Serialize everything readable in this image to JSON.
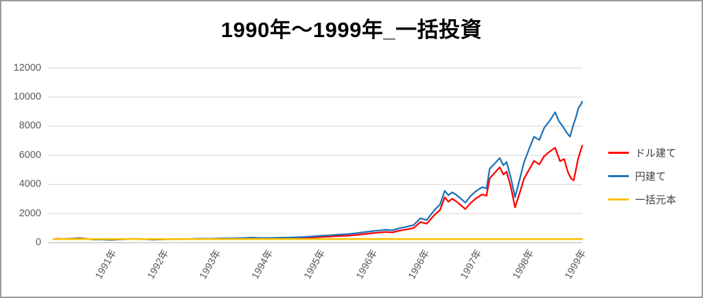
{
  "chart_data": {
    "type": "line",
    "title": "1990年～1999年_一括投資",
    "x_ticks": [
      "1991年",
      "1992年",
      "1993年",
      "1994年",
      "1995年",
      "1996年",
      "1996年",
      "1997年",
      "1998年",
      "1999年"
    ],
    "y_ticks": [
      0,
      2000,
      4000,
      6000,
      8000,
      10000,
      12000
    ],
    "ylim": [
      0,
      12000
    ],
    "grid": "horizontal",
    "legend_position": "right",
    "series": [
      {
        "key": "usd",
        "name": "ドル建て",
        "color": "#FF0000",
        "points": [
          [
            0,
            255
          ],
          [
            0.008,
            270
          ],
          [
            0.018,
            258
          ],
          [
            0.031,
            280
          ],
          [
            0.043,
            300
          ],
          [
            0.05,
            315
          ],
          [
            0.059,
            280
          ],
          [
            0.069,
            252
          ],
          [
            0.079,
            228
          ],
          [
            0.089,
            242
          ],
          [
            0.1,
            218
          ],
          [
            0.111,
            208
          ],
          [
            0.122,
            232
          ],
          [
            0.137,
            252
          ],
          [
            0.153,
            265
          ],
          [
            0.165,
            250
          ],
          [
            0.177,
            244
          ],
          [
            0.189,
            218
          ],
          [
            0.203,
            236
          ],
          [
            0.219,
            252
          ],
          [
            0.236,
            246
          ],
          [
            0.256,
            256
          ],
          [
            0.276,
            270
          ],
          [
            0.297,
            264
          ],
          [
            0.317,
            276
          ],
          [
            0.338,
            282
          ],
          [
            0.358,
            292
          ],
          [
            0.374,
            312
          ],
          [
            0.39,
            292
          ],
          [
            0.409,
            286
          ],
          [
            0.429,
            296
          ],
          [
            0.449,
            302
          ],
          [
            0.473,
            330
          ],
          [
            0.49,
            362
          ],
          [
            0.508,
            400
          ],
          [
            0.524,
            425
          ],
          [
            0.539,
            460
          ],
          [
            0.555,
            480
          ],
          [
            0.571,
            525
          ],
          [
            0.59,
            605
          ],
          [
            0.61,
            685
          ],
          [
            0.629,
            735
          ],
          [
            0.642,
            705
          ],
          [
            0.651,
            805
          ],
          [
            0.67,
            925
          ],
          [
            0.681,
            1010
          ],
          [
            0.694,
            1420
          ],
          [
            0.706,
            1310
          ],
          [
            0.721,
            1930
          ],
          [
            0.731,
            2240
          ],
          [
            0.74,
            3120
          ],
          [
            0.747,
            2820
          ],
          [
            0.754,
            3020
          ],
          [
            0.761,
            2860
          ],
          [
            0.769,
            2620
          ],
          [
            0.779,
            2310
          ],
          [
            0.789,
            2720
          ],
          [
            0.799,
            3040
          ],
          [
            0.811,
            3320
          ],
          [
            0.819,
            3220
          ],
          [
            0.825,
            4420
          ],
          [
            0.834,
            4780
          ],
          [
            0.844,
            5180
          ],
          [
            0.851,
            4680
          ],
          [
            0.857,
            4880
          ],
          [
            0.865,
            3850
          ],
          [
            0.873,
            2430
          ],
          [
            0.881,
            3320
          ],
          [
            0.89,
            4400
          ],
          [
            0.9,
            5050
          ],
          [
            0.909,
            5620
          ],
          [
            0.919,
            5380
          ],
          [
            0.928,
            5940
          ],
          [
            0.94,
            6300
          ],
          [
            0.949,
            6520
          ],
          [
            0.958,
            5600
          ],
          [
            0.966,
            5750
          ],
          [
            0.973,
            4850
          ],
          [
            0.979,
            4420
          ],
          [
            0.984,
            4280
          ],
          [
            0.988,
            5000
          ],
          [
            0.992,
            5700
          ],
          [
            0.996,
            6200
          ],
          [
            1,
            6660
          ]
        ]
      },
      {
        "key": "jpy",
        "name": "円建て",
        "color": "#1F72B8",
        "points": [
          [
            0,
            250
          ],
          [
            0.008,
            262
          ],
          [
            0.018,
            250
          ],
          [
            0.031,
            270
          ],
          [
            0.043,
            288
          ],
          [
            0.05,
            298
          ],
          [
            0.059,
            265
          ],
          [
            0.069,
            238
          ],
          [
            0.079,
            212
          ],
          [
            0.089,
            226
          ],
          [
            0.1,
            203
          ],
          [
            0.111,
            194
          ],
          [
            0.122,
            216
          ],
          [
            0.137,
            236
          ],
          [
            0.153,
            250
          ],
          [
            0.165,
            238
          ],
          [
            0.177,
            232
          ],
          [
            0.189,
            206
          ],
          [
            0.203,
            224
          ],
          [
            0.219,
            240
          ],
          [
            0.236,
            238
          ],
          [
            0.256,
            252
          ],
          [
            0.276,
            282
          ],
          [
            0.297,
            280
          ],
          [
            0.317,
            296
          ],
          [
            0.338,
            306
          ],
          [
            0.358,
            320
          ],
          [
            0.374,
            352
          ],
          [
            0.39,
            332
          ],
          [
            0.409,
            330
          ],
          [
            0.429,
            346
          ],
          [
            0.449,
            356
          ],
          [
            0.473,
            392
          ],
          [
            0.49,
            432
          ],
          [
            0.508,
            480
          ],
          [
            0.524,
            512
          ],
          [
            0.539,
            556
          ],
          [
            0.555,
            588
          ],
          [
            0.571,
            645
          ],
          [
            0.59,
            735
          ],
          [
            0.61,
            825
          ],
          [
            0.629,
            885
          ],
          [
            0.642,
            852
          ],
          [
            0.651,
            965
          ],
          [
            0.67,
            1115
          ],
          [
            0.681,
            1215
          ],
          [
            0.694,
            1680
          ],
          [
            0.706,
            1560
          ],
          [
            0.721,
            2270
          ],
          [
            0.731,
            2620
          ],
          [
            0.74,
            3560
          ],
          [
            0.747,
            3260
          ],
          [
            0.754,
            3460
          ],
          [
            0.761,
            3310
          ],
          [
            0.769,
            3080
          ],
          [
            0.779,
            2750
          ],
          [
            0.789,
            3210
          ],
          [
            0.799,
            3540
          ],
          [
            0.811,
            3820
          ],
          [
            0.819,
            3720
          ],
          [
            0.825,
            5080
          ],
          [
            0.834,
            5420
          ],
          [
            0.844,
            5820
          ],
          [
            0.851,
            5320
          ],
          [
            0.857,
            5540
          ],
          [
            0.865,
            4480
          ],
          [
            0.873,
            3120
          ],
          [
            0.881,
            4240
          ],
          [
            0.89,
            5520
          ],
          [
            0.9,
            6480
          ],
          [
            0.909,
            7280
          ],
          [
            0.919,
            7060
          ],
          [
            0.928,
            7880
          ],
          [
            0.94,
            8450
          ],
          [
            0.949,
            8960
          ],
          [
            0.956,
            8350
          ],
          [
            0.963,
            8000
          ],
          [
            0.97,
            7600
          ],
          [
            0.977,
            7280
          ],
          [
            0.983,
            8050
          ],
          [
            0.988,
            8600
          ],
          [
            0.993,
            9250
          ],
          [
            0.997,
            9450
          ],
          [
            1,
            9680
          ]
        ]
      },
      {
        "key": "principal",
        "name": "一括元本",
        "color": "#FFC000",
        "points": [
          [
            0,
            250
          ],
          [
            1,
            250
          ]
        ]
      }
    ],
    "colors": {
      "gridline": "#D9D9D9",
      "axis_line": "#BFBFBF",
      "tick_label": "#595959",
      "legend_label": "#404040",
      "title": "#000000"
    }
  }
}
